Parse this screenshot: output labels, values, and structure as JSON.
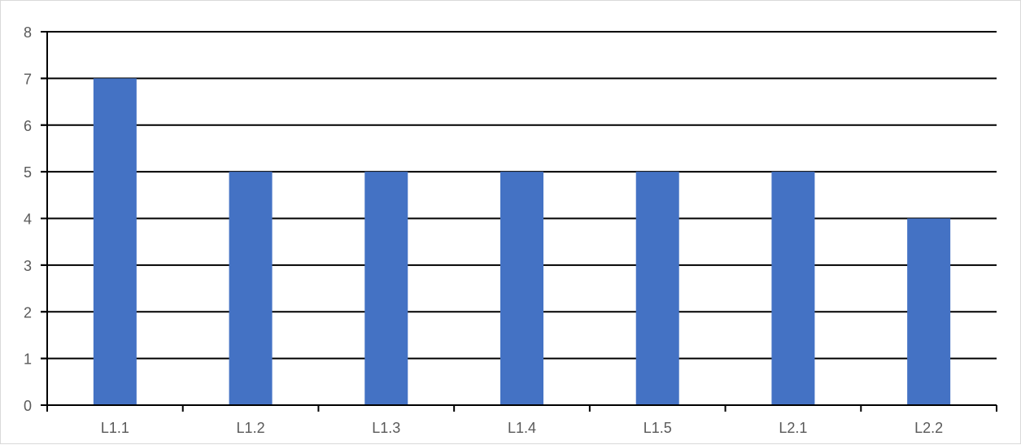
{
  "chart_data": {
    "type": "bar",
    "title": "",
    "xlabel": "",
    "ylabel": "",
    "categories": [
      "L1.1",
      "L1.2",
      "L1.3",
      "L1.4",
      "L1.5",
      "L2.1",
      "L2.2"
    ],
    "values": [
      7,
      5,
      5,
      5,
      5,
      5,
      4
    ],
    "ylim": [
      0,
      8
    ],
    "yticks": [
      "0",
      "1",
      "2",
      "3",
      "4",
      "5",
      "6",
      "7",
      "8"
    ],
    "grid": true,
    "legend": "none",
    "bar_color": "#4472C4",
    "gridline_color": "#000000",
    "axis_color": "#000000",
    "label_color": "#595959"
  }
}
